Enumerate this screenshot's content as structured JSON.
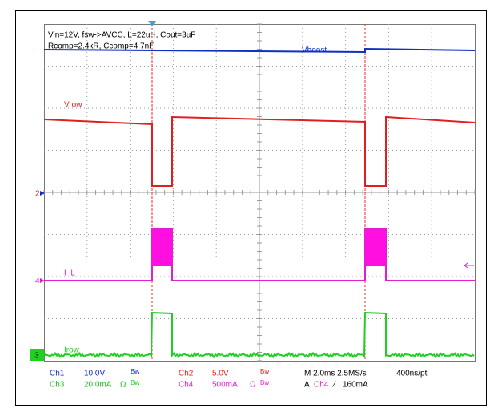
{
  "header": {
    "setup": [
      "Vin=12V, fsw->AVCC, L=22uH, Cout=3uF",
      "Rcomp=2.4kR, Ccomp=4.7nF"
    ]
  },
  "traces": [
    {
      "label": "Vboost"
    },
    {
      "label": "Vrow"
    },
    {
      "label": "I_L"
    },
    {
      "label": "Irow"
    }
  ],
  "markers": [
    "2",
    "4",
    "3"
  ],
  "status": {
    "row1": [
      "Ch1",
      "10.0V",
      "Bw",
      "Ch2",
      "5.0V",
      "Bw",
      "M 2.0ms 2.5MS/s",
      "400ns/pt"
    ],
    "row2": [
      "Ch3",
      "20.0mA",
      "Ω",
      "Bw",
      "Ch4",
      "500mA",
      "Ω",
      "Bw",
      "A",
      "Ch4",
      "∕",
      "160mA"
    ]
  }
}
